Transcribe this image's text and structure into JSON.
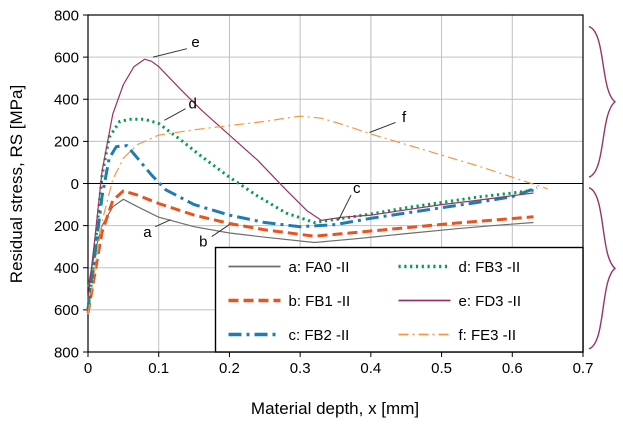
{
  "chart_data": {
    "type": "line",
    "title": "",
    "xlabel": "Material depth, x [mm]",
    "ylabel": "Residual stress, RS [MPa]",
    "xlim": [
      0,
      0.7
    ],
    "ylim": [
      -800,
      800
    ],
    "grid": true,
    "legend_position": "inside-bottom-right",
    "x_ticks": [
      0,
      0.1,
      0.2,
      0.3,
      0.4,
      0.5,
      0.6,
      0.7
    ],
    "x_tick_labels": [
      "0",
      "0.1",
      "0.2",
      "0.3",
      "0.4",
      "0.5",
      "0.6",
      "0.7"
    ],
    "y_ticks": [
      800,
      600,
      400,
      200,
      0,
      -200,
      -400,
      -600,
      -800
    ],
    "y_tick_labels": [
      "800",
      "600",
      "400",
      "200",
      "0",
      "200",
      "400",
      "600",
      "800"
    ],
    "colors": {
      "grid": "#c0c0c0",
      "axis": "#000000",
      "brace": "#993366",
      "leader": "#333333"
    },
    "series": [
      {
        "letter": "a",
        "name": "FA0-II",
        "legend_label": "a: FA0  -II",
        "color": "#6e6e6e",
        "width": 1.2,
        "dash": "solid",
        "points": [
          [
            0,
            -490
          ],
          [
            0.01,
            -320
          ],
          [
            0.02,
            -200
          ],
          [
            0.035,
            -110
          ],
          [
            0.05,
            -75
          ],
          [
            0.07,
            -110
          ],
          [
            0.1,
            -160
          ],
          [
            0.15,
            -205
          ],
          [
            0.2,
            -235
          ],
          [
            0.25,
            -255
          ],
          [
            0.32,
            -280
          ],
          [
            0.38,
            -262
          ],
          [
            0.45,
            -238
          ],
          [
            0.52,
            -215
          ],
          [
            0.58,
            -198
          ],
          [
            0.63,
            -185
          ]
        ]
      },
      {
        "letter": "b",
        "name": "FB1-II",
        "legend_label": "b: FB1  -II",
        "color": "#e8531f",
        "width": 3,
        "dash": "dashed",
        "points": [
          [
            0,
            -615
          ],
          [
            0.01,
            -420
          ],
          [
            0.02,
            -230
          ],
          [
            0.035,
            -80
          ],
          [
            0.05,
            -35
          ],
          [
            0.07,
            -55
          ],
          [
            0.1,
            -95
          ],
          [
            0.15,
            -150
          ],
          [
            0.2,
            -190
          ],
          [
            0.25,
            -220
          ],
          [
            0.32,
            -250
          ],
          [
            0.38,
            -232
          ],
          [
            0.45,
            -210
          ],
          [
            0.52,
            -188
          ],
          [
            0.58,
            -172
          ],
          [
            0.63,
            -158
          ]
        ]
      },
      {
        "letter": "c",
        "name": "FB2-II",
        "legend_label": "c: FB2  -II",
        "color": "#1f7bb6",
        "width": 3,
        "dash": "dashdot",
        "points": [
          [
            0,
            -595
          ],
          [
            0.01,
            -330
          ],
          [
            0.02,
            -60
          ],
          [
            0.03,
            120
          ],
          [
            0.04,
            175
          ],
          [
            0.055,
            180
          ],
          [
            0.07,
            120
          ],
          [
            0.09,
            40
          ],
          [
            0.11,
            -30
          ],
          [
            0.15,
            -100
          ],
          [
            0.2,
            -150
          ],
          [
            0.25,
            -185
          ],
          [
            0.3,
            -205
          ],
          [
            0.35,
            -195
          ],
          [
            0.4,
            -165
          ],
          [
            0.45,
            -140
          ],
          [
            0.5,
            -115
          ],
          [
            0.55,
            -90
          ],
          [
            0.6,
            -62
          ],
          [
            0.635,
            -20
          ]
        ]
      },
      {
        "letter": "d",
        "name": "FB3-II",
        "legend_label": "d: FB3  -II",
        "color": "#00a050",
        "width": 3,
        "dash": "dotted",
        "points": [
          [
            0,
            -600
          ],
          [
            0.01,
            -300
          ],
          [
            0.02,
            40
          ],
          [
            0.03,
            220
          ],
          [
            0.045,
            295
          ],
          [
            0.06,
            305
          ],
          [
            0.08,
            305
          ],
          [
            0.1,
            285
          ],
          [
            0.13,
            210
          ],
          [
            0.16,
            130
          ],
          [
            0.2,
            30
          ],
          [
            0.24,
            -60
          ],
          [
            0.28,
            -140
          ],
          [
            0.32,
            -185
          ],
          [
            0.36,
            -165
          ],
          [
            0.4,
            -145
          ],
          [
            0.45,
            -115
          ],
          [
            0.5,
            -90
          ],
          [
            0.55,
            -65
          ],
          [
            0.6,
            -45
          ],
          [
            0.63,
            -32
          ]
        ]
      },
      {
        "letter": "e",
        "name": "FD3-II",
        "legend_label": "e: FD3  -II",
        "color": "#993366",
        "width": 1.2,
        "dash": "solid",
        "points": [
          [
            0,
            -545
          ],
          [
            0.01,
            -250
          ],
          [
            0.02,
            60
          ],
          [
            0.035,
            330
          ],
          [
            0.05,
            470
          ],
          [
            0.065,
            555
          ],
          [
            0.08,
            590
          ],
          [
            0.09,
            580
          ],
          [
            0.1,
            555
          ],
          [
            0.13,
            450
          ],
          [
            0.16,
            350
          ],
          [
            0.2,
            230
          ],
          [
            0.24,
            110
          ],
          [
            0.28,
            -30
          ],
          [
            0.31,
            -130
          ],
          [
            0.33,
            -175
          ],
          [
            0.36,
            -160
          ],
          [
            0.4,
            -150
          ],
          [
            0.45,
            -125
          ],
          [
            0.5,
            -100
          ],
          [
            0.55,
            -80
          ],
          [
            0.6,
            -58
          ],
          [
            0.63,
            -45
          ]
        ]
      },
      {
        "letter": "f",
        "name": "FE3-II",
        "legend_label": "f: FE3  -II",
        "color": "#f79646",
        "width": 1.2,
        "dash": "thindashdot",
        "points": [
          [
            0,
            -620
          ],
          [
            0.01,
            -400
          ],
          [
            0.02,
            -180
          ],
          [
            0.035,
            20
          ],
          [
            0.05,
            120
          ],
          [
            0.07,
            185
          ],
          [
            0.1,
            230
          ],
          [
            0.15,
            255
          ],
          [
            0.2,
            275
          ],
          [
            0.25,
            295
          ],
          [
            0.3,
            320
          ],
          [
            0.33,
            310
          ],
          [
            0.36,
            280
          ],
          [
            0.4,
            235
          ],
          [
            0.45,
            185
          ],
          [
            0.5,
            135
          ],
          [
            0.55,
            85
          ],
          [
            0.6,
            30
          ],
          [
            0.65,
            -25
          ]
        ]
      }
    ],
    "annotations": [
      {
        "text": "e",
        "x": 0.152,
        "y": 672,
        "leader": [
          [
            0.14,
            640
          ],
          [
            0.092,
            600
          ]
        ]
      },
      {
        "text": "d",
        "x": 0.148,
        "y": 382,
        "leader": [
          [
            0.138,
            355
          ],
          [
            0.108,
            300
          ]
        ]
      },
      {
        "text": "f",
        "x": 0.447,
        "y": 316,
        "leader": [
          [
            0.435,
            290
          ],
          [
            0.398,
            242
          ]
        ]
      },
      {
        "text": "a",
        "x": 0.084,
        "y": -228,
        "leader": [
          [
            0.095,
            -205
          ],
          [
            0.117,
            -172
          ]
        ]
      },
      {
        "text": "b",
        "x": 0.163,
        "y": -275,
        "leader": [
          [
            0.175,
            -252
          ],
          [
            0.2,
            -195
          ]
        ]
      },
      {
        "text": "c",
        "x": 0.38,
        "y": -20,
        "leader": [
          [
            0.372,
            -55
          ],
          [
            0.354,
            -175
          ]
        ]
      }
    ],
    "braces": [
      {
        "label": "tensile-region",
        "from": 745,
        "to": 30
      },
      {
        "label": "compressive-region",
        "from": -20,
        "to": -785
      }
    ]
  }
}
